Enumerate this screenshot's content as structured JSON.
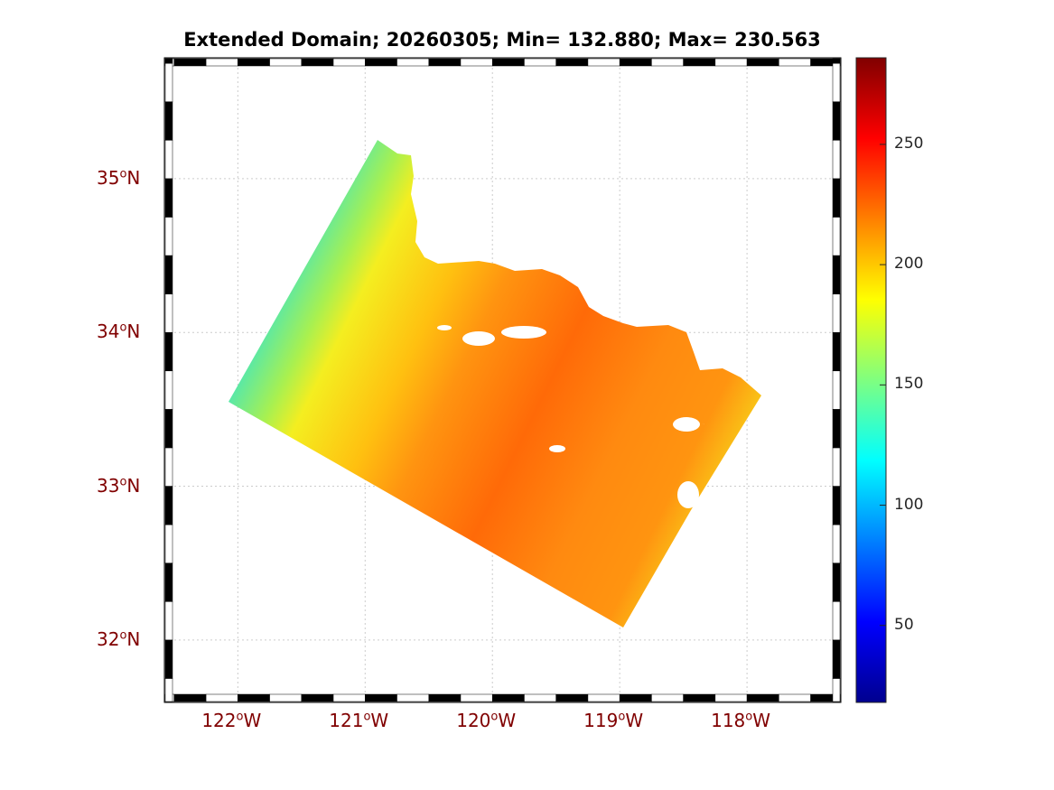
{
  "chart_data": {
    "type": "heatmap",
    "title": "Extended Domain; 20260305; Min= 132.880; Max= 230.563",
    "xlim": [
      -122.57,
      -117.27
    ],
    "ylim": [
      31.6,
      35.78
    ],
    "x_ticks": [
      {
        "value": -122,
        "label": "122",
        "suffix": "W"
      },
      {
        "value": -121,
        "label": "121",
        "suffix": "W"
      },
      {
        "value": -120,
        "label": "120",
        "suffix": "W"
      },
      {
        "value": -119,
        "label": "119",
        "suffix": "W"
      },
      {
        "value": -118,
        "label": "118",
        "suffix": "W"
      }
    ],
    "y_ticks": [
      {
        "value": 35,
        "label": "35",
        "suffix": "N"
      },
      {
        "value": 34,
        "label": "34",
        "suffix": "N"
      },
      {
        "value": 33,
        "label": "33",
        "suffix": "N"
      },
      {
        "value": 32,
        "label": "32",
        "suffix": "N"
      }
    ],
    "degree_symbol": "o",
    "colorbar": {
      "colormap": "jet",
      "range": [
        18,
        286
      ],
      "ticks": [
        "50",
        "100",
        "150",
        "200",
        "250"
      ],
      "tick_values": [
        50,
        100,
        150,
        200,
        250
      ]
    },
    "min": 132.88,
    "max": 230.563,
    "grid": true
  }
}
